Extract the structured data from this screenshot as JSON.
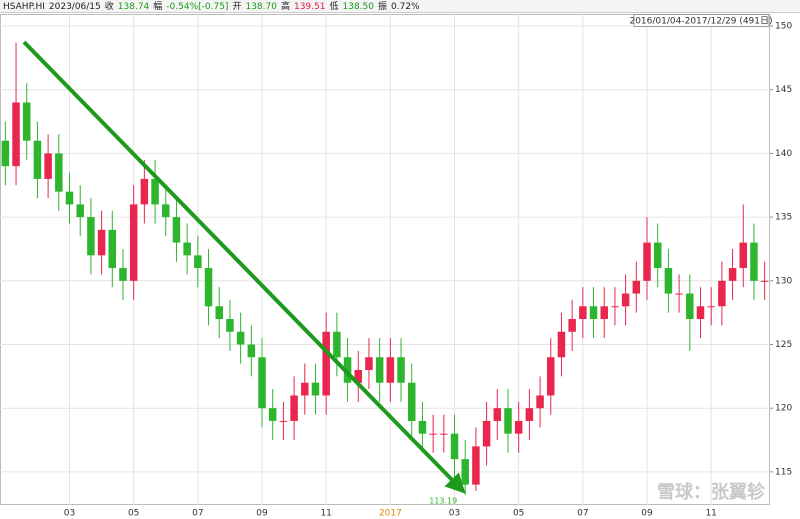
{
  "chart_data": {
    "type": "candlestick",
    "quote": [
      {
        "text": "HSAHP.HI",
        "color": "#222222"
      },
      {
        "text": "2023/06/15",
        "color": "#222222"
      },
      {
        "text": "收",
        "color": "#222222"
      },
      {
        "text": "138.74",
        "color": "#1a9a1a"
      },
      {
        "text": "幅",
        "color": "#222222"
      },
      {
        "text": "-0.54%[-0.75]",
        "color": "#1a9a1a"
      },
      {
        "text": "开",
        "color": "#222222"
      },
      {
        "text": "138.70",
        "color": "#1a9a1a"
      },
      {
        "text": "高",
        "color": "#222222"
      },
      {
        "text": "139.51",
        "color": "#e0203c"
      },
      {
        "text": "低",
        "color": "#222222"
      },
      {
        "text": "138.50",
        "color": "#1a9a1a"
      },
      {
        "text": "振",
        "color": "#222222"
      },
      {
        "text": "0.72%",
        "color": "#222222"
      }
    ],
    "range_label": "2016/01/04-2017/12/29 (491日)",
    "annotation": {
      "text": "113.19",
      "index": 43
    },
    "watermark": "雪球：张翼轸",
    "up_color": "#e8264e",
    "down_color": "#2db52d",
    "categories": [
      null,
      null,
      null,
      null,
      null,
      null,
      "03",
      null,
      null,
      null,
      null,
      null,
      "05",
      null,
      null,
      null,
      null,
      null,
      "07",
      null,
      null,
      null,
      null,
      null,
      "09",
      null,
      null,
      null,
      null,
      null,
      "11",
      null,
      null,
      null,
      null,
      null,
      "2017",
      null,
      null,
      null,
      null,
      null,
      "03",
      null,
      null,
      null,
      null,
      null,
      "05",
      null,
      null,
      null,
      null,
      null,
      "07",
      null,
      null,
      null,
      null,
      null,
      "09",
      null,
      null,
      null,
      null,
      null,
      "11",
      null,
      null,
      null,
      null,
      null
    ],
    "open": [
      141,
      139,
      144,
      141,
      138,
      140,
      137,
      136,
      135,
      132,
      134,
      131,
      130,
      136,
      138,
      136,
      135,
      133,
      132,
      131,
      128,
      127,
      126,
      125,
      124,
      120,
      119,
      119,
      121,
      122,
      121,
      126,
      124,
      122,
      123,
      124,
      122,
      124,
      122,
      119,
      118,
      118,
      118,
      116,
      114,
      117,
      119,
      120,
      118,
      119,
      120,
      121,
      124,
      126,
      127,
      128,
      127,
      128,
      128,
      129,
      130,
      133,
      131,
      129,
      129,
      127,
      128,
      128,
      130,
      131,
      133,
      130
    ],
    "high": [
      142.5,
      148.7,
      145.5,
      142.5,
      141.5,
      141.5,
      138.5,
      137.5,
      136.5,
      135.5,
      135.5,
      132.5,
      137.5,
      139.5,
      139.5,
      137.5,
      136.5,
      134.5,
      133.5,
      132.5,
      129.5,
      128.5,
      127.5,
      126.5,
      125.5,
      121.5,
      120.5,
      122.5,
      123.5,
      123.5,
      127.5,
      127.5,
      125.5,
      124.5,
      125.5,
      125.5,
      125.5,
      125.5,
      123.5,
      120.5,
      119.5,
      119.5,
      119.5,
      117.5,
      118.5,
      120.5,
      121.5,
      121.5,
      120.5,
      121.5,
      122.5,
      125.5,
      127.5,
      128.5,
      129.5,
      129.5,
      129.5,
      129.5,
      130.5,
      131.5,
      135,
      134.5,
      132.5,
      130.5,
      130.5,
      129.5,
      129.5,
      131.5,
      132.5,
      136,
      134.5,
      131.5
    ],
    "low": [
      137.5,
      137.5,
      139.5,
      136.5,
      136.5,
      135.5,
      134.5,
      133.5,
      130.5,
      130.5,
      129.5,
      128.5,
      128.5,
      134.5,
      134.5,
      133.5,
      131.5,
      130.5,
      129.5,
      126.5,
      125.5,
      124.5,
      123.5,
      122.5,
      118.5,
      117.5,
      117.5,
      117.5,
      119.5,
      119.5,
      119.5,
      122.5,
      120.5,
      120.5,
      121.5,
      120.5,
      120.5,
      120.5,
      117.5,
      116.5,
      116.5,
      116.5,
      114.5,
      113.19,
      113.5,
      115.5,
      117.5,
      116.5,
      116.5,
      117.5,
      118.5,
      119.5,
      122.5,
      124.5,
      125.5,
      125.5,
      125.5,
      126.5,
      126.5,
      127.5,
      128.5,
      129.5,
      127.5,
      127.5,
      124.5,
      125.5,
      126.5,
      126.5,
      128.5,
      129.5,
      128.5,
      128.5
    ],
    "close": [
      139,
      144,
      141,
      138,
      140,
      137,
      136,
      135,
      132,
      134,
      131,
      130,
      136,
      138,
      136,
      135,
      133,
      132,
      131,
      128,
      127,
      126,
      125,
      124,
      120,
      119,
      119,
      121,
      122,
      121,
      126,
      124,
      122,
      123,
      124,
      122,
      124,
      122,
      119,
      118,
      118,
      118,
      116,
      114,
      117,
      119,
      120,
      118,
      119,
      120,
      121,
      124,
      126,
      127,
      128,
      127,
      128,
      128,
      129,
      130,
      133,
      131,
      129,
      129,
      127,
      128,
      128,
      130,
      131,
      133,
      130,
      130
    ],
    "ylim": [
      112.4,
      150.6
    ],
    "yticks": [
      115,
      120,
      125,
      130,
      135,
      140,
      145,
      150
    ],
    "grid": true,
    "highlight_tick_color": "#e08a00",
    "highlight_tick": "2017"
  }
}
